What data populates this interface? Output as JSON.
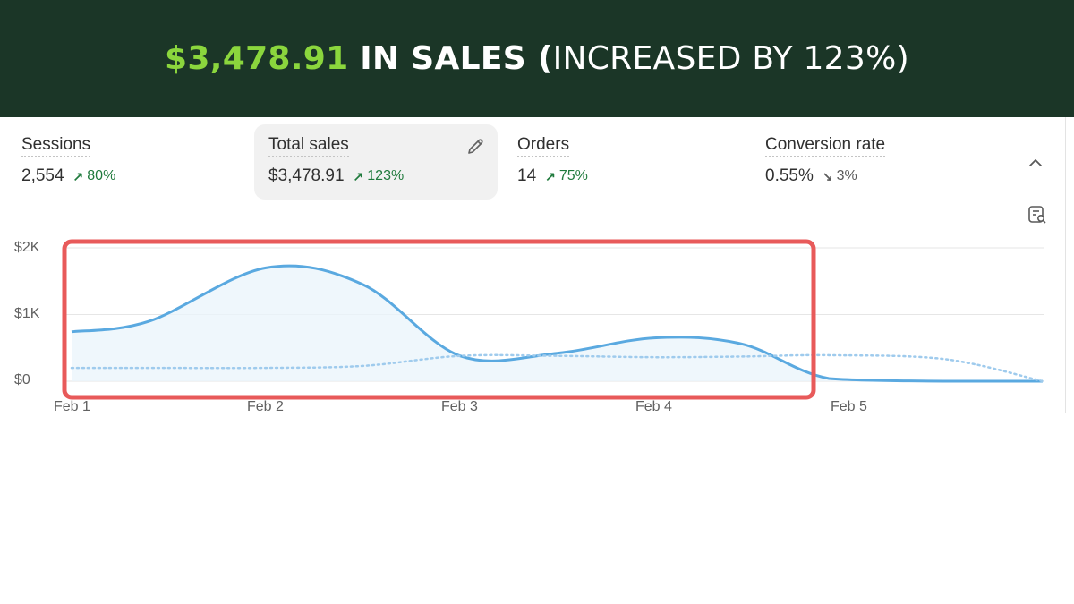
{
  "banner": {
    "amount": "$3,478.91",
    "in_sales": " IN SALES (",
    "increase_text": "INCREASED BY 123%)"
  },
  "metrics": [
    {
      "label": "Sessions",
      "value": "2,554",
      "change": "80%",
      "direction": "up"
    },
    {
      "label": "Total sales",
      "value": "$3,478.91",
      "change": "123%",
      "direction": "up"
    },
    {
      "label": "Orders",
      "value": "14",
      "change": "75%",
      "direction": "up"
    },
    {
      "label": "Conversion rate",
      "value": "0.55%",
      "change": "3%",
      "direction": "down"
    }
  ],
  "icons": {
    "edit": "pencil-icon",
    "collapse": "chevron-up-icon",
    "report": "report-search-icon"
  },
  "colors": {
    "banner_bg": "#1b3627",
    "accent_green": "#8bd63d",
    "line_blue": "#5aa9e0",
    "highlight_red": "#e85a5a",
    "change_up": "#1f7a3c"
  },
  "chart_data": {
    "type": "area",
    "y_ticks": [
      "$2K",
      "$1K",
      "$0"
    ],
    "x_ticks": [
      "Feb 1",
      "Feb 2",
      "Feb 3",
      "Feb 4",
      "Feb 5"
    ],
    "ylim": [
      0,
      2000
    ],
    "x": [
      1,
      1.4,
      2,
      2.5,
      3,
      3.5,
      4,
      4.45,
      4.9,
      5.5,
      6
    ],
    "series": [
      {
        "style": "solid",
        "values": [
          740,
          900,
          1700,
          1450,
          380,
          420,
          650,
          560,
          40,
          0,
          0
        ]
      },
      {
        "style": "dotted",
        "values": [
          200,
          200,
          200,
          230,
          380,
          380,
          360,
          370,
          390,
          330,
          0
        ]
      }
    ],
    "grid": true,
    "highlight": "Feb 1 to Feb 4"
  }
}
